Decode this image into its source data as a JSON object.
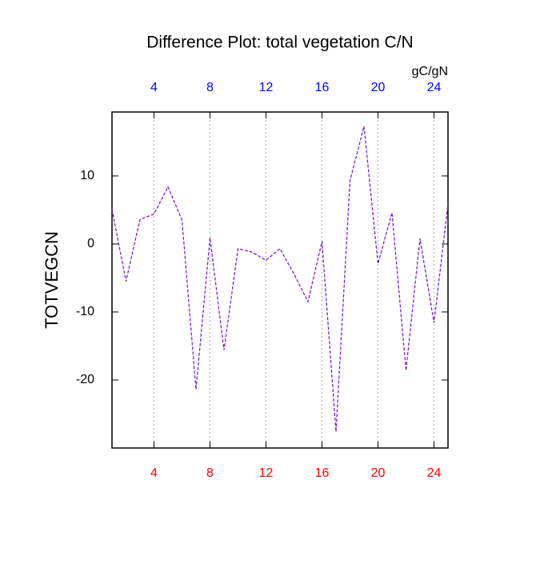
{
  "chart_data": {
    "type": "line",
    "title": "Difference Plot: total vegetation C/N",
    "ylabel": "TOTVEGCN",
    "top_axis_label": "gC/gN",
    "x": [
      1,
      2,
      3,
      4,
      5,
      6,
      7,
      8,
      9,
      10,
      11,
      12,
      13,
      14,
      15,
      16,
      17,
      18,
      19,
      20,
      21,
      22,
      23,
      24,
      25
    ],
    "series": [
      {
        "color": "#7a10c8",
        "values": [
          5.1,
          -5.5,
          3.6,
          4.4,
          8.4,
          3.5,
          -21.4,
          0.9,
          -15.6,
          -0.7,
          -1.2,
          -2.4,
          -0.7,
          -4.4,
          -8.5,
          0.4,
          -27.6,
          9.3,
          17.3,
          -2.9,
          4.6,
          -18.6,
          0.8,
          -11.6,
          5.9
        ]
      }
    ],
    "xlim": [
      1,
      25
    ],
    "ylim": [
      -30,
      19.4
    ],
    "xticks": [
      4,
      8,
      12,
      16,
      20,
      24
    ],
    "yticks": [
      -20,
      -10,
      0,
      10
    ],
    "bottom_tick_color": "#ff0000",
    "top_tick_color": "#0000ff",
    "grid": true
  }
}
